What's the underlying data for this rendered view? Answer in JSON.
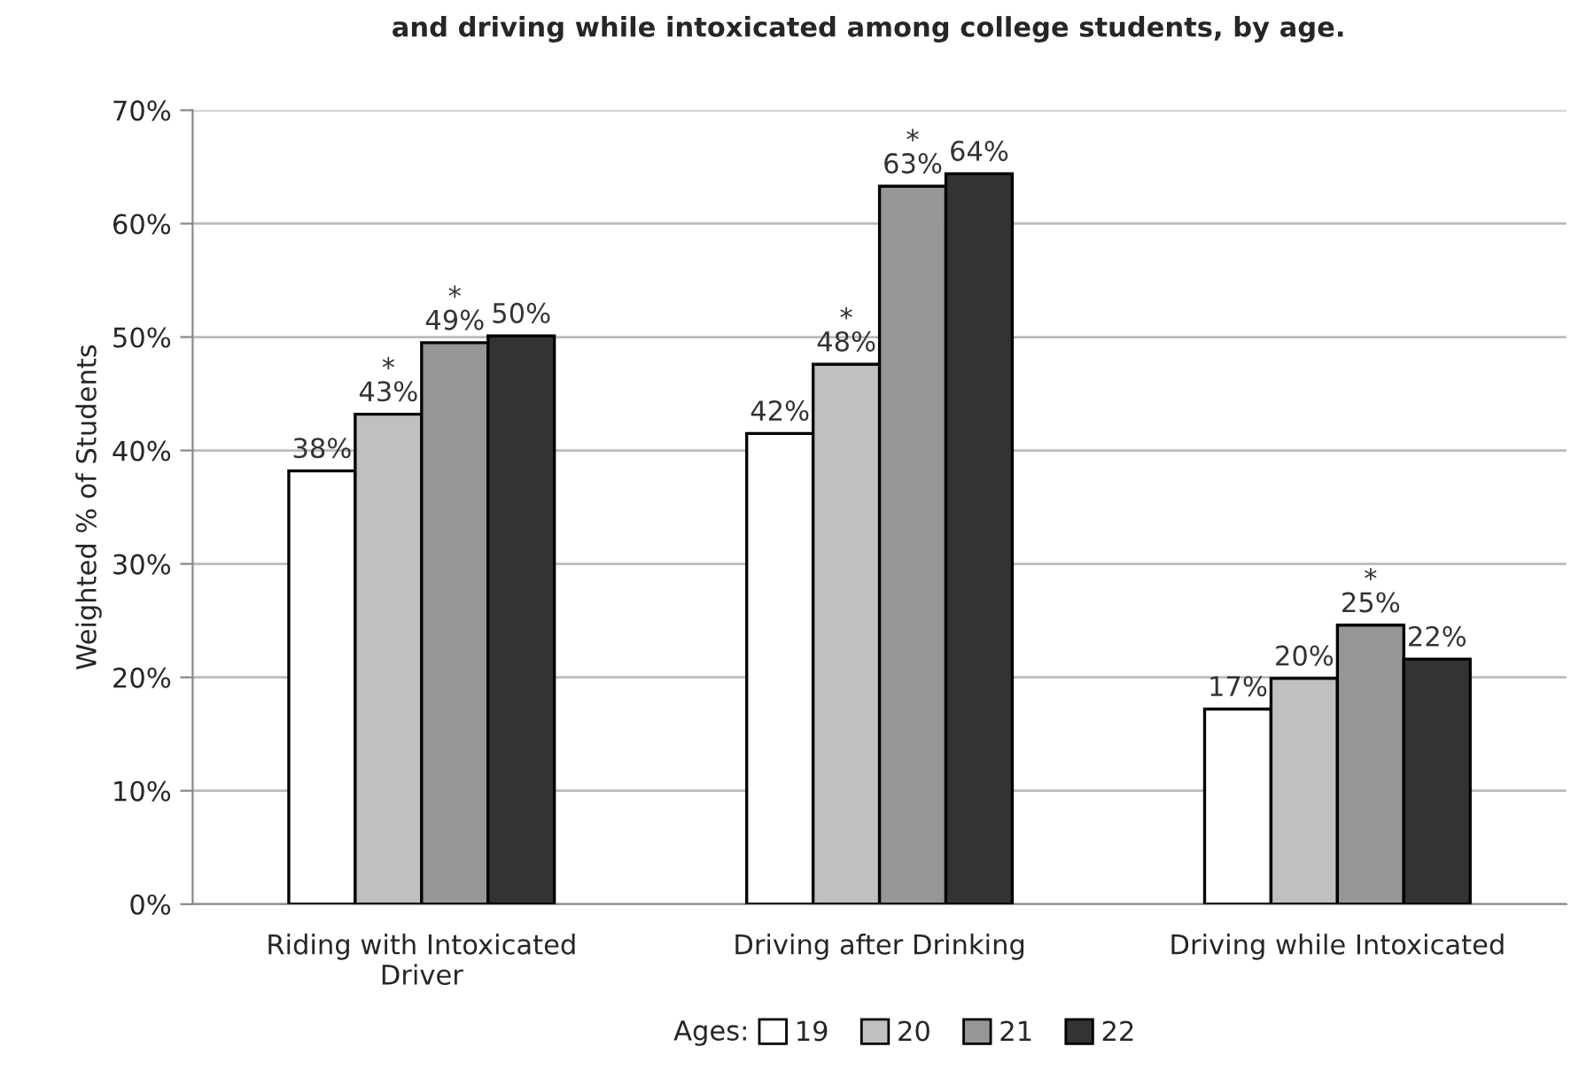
{
  "chart_data": {
    "type": "bar",
    "title": "and driving while intoxicated among college students, by age.",
    "ylabel": "Weighted % of Students",
    "legend_title": "Ages:",
    "categories": [
      "Riding with Intoxicated\nDriver",
      "Driving after Drinking",
      "Driving while Intoxicated"
    ],
    "series": [
      {
        "name": "19",
        "color": "#ffffff",
        "values": [
          38.2,
          41.5,
          17.2
        ],
        "value_labels": [
          "38%",
          "42%",
          "17%"
        ]
      },
      {
        "name": "20",
        "color": "#c0c0c0",
        "values": [
          43.2,
          47.6,
          19.9
        ],
        "value_labels": [
          "*\n43%",
          "*\n48%",
          "20%"
        ]
      },
      {
        "name": "21",
        "color": "#969696",
        "values": [
          49.5,
          63.3,
          24.6
        ],
        "value_labels": [
          "*\n49%",
          "*\n63%",
          "*\n25%"
        ]
      },
      {
        "name": "22",
        "color": "#333333",
        "values": [
          50.1,
          64.4,
          21.6
        ],
        "value_labels": [
          "50%",
          "64%",
          "22%"
        ]
      }
    ],
    "ylim": [
      0,
      70
    ],
    "yticks": [
      {
        "value": 0,
        "label": "0%"
      },
      {
        "value": 10,
        "label": "10%"
      },
      {
        "value": 20,
        "label": "20%"
      },
      {
        "value": 30,
        "label": "30%"
      },
      {
        "value": 40,
        "label": "40%"
      },
      {
        "value": 50,
        "label": "50%"
      },
      {
        "value": 60,
        "label": "60%"
      },
      {
        "value": 70,
        "label": "70%"
      }
    ],
    "grid": "y",
    "legend": "bottom"
  }
}
